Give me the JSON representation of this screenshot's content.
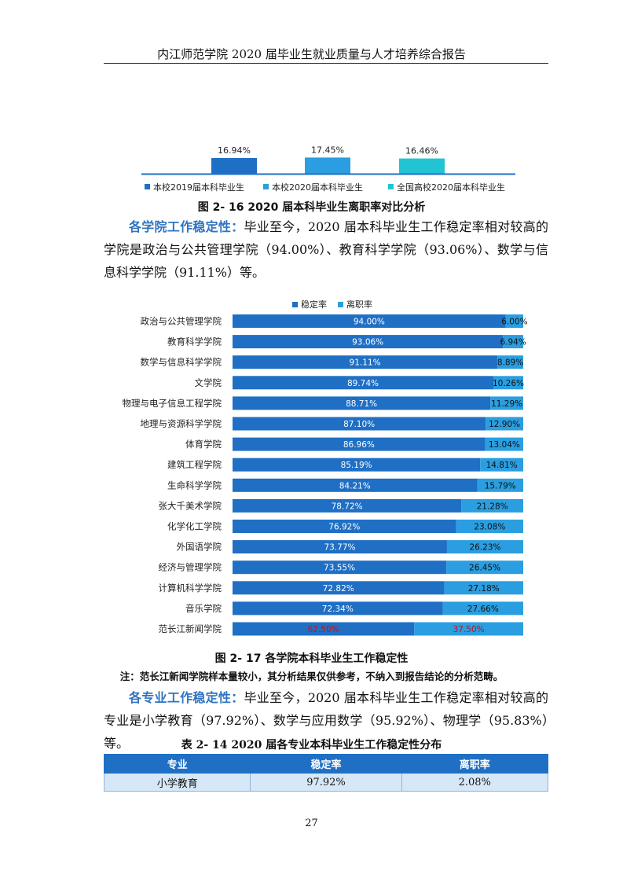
{
  "header": {
    "title": "内江师范学院 2020 届毕业生就业质量与人才培养综合报告"
  },
  "chart1": {
    "caption": "图 2- 16    2020 届本科毕业生离职率对比分析",
    "colors": [
      "#1f6fc5",
      "#2a9ee0",
      "#22c4d4"
    ]
  },
  "section1": {
    "keyword": "各学院工作稳定性：",
    "text": "毕业至今，2020 届本科毕业生工作稳定率相对较高的学院是政治与公共管理学院（94.00%）、教育科学学院（93.06%）、数学与信息科学学院（91.11%）等。"
  },
  "chart2": {
    "caption": "图 2- 17    各学院本科毕业生工作稳定性",
    "colors": {
      "stable": "#1f6fc5",
      "leave": "#2a9ee0",
      "highlight_text": "#c0151b"
    }
  },
  "note": "注：范长江新闻学院样本量较小，其分析结果仅供参考，不纳入到报告结论的分析范畴。",
  "section2": {
    "keyword": "各专业工作稳定性：",
    "text": "毕业至今，2020 届本科毕业生工作稳定率相对较高的专业是小学教育（97.92%）、数学与应用数学（95.92%）、物理学（95.83%）等。"
  },
  "table": {
    "caption": "表 2- 14    2020 届各专业本科毕业生工作稳定性分布",
    "headers": [
      "专业",
      "稳定率",
      "离职率"
    ],
    "rows": [
      [
        "小学教育",
        "97.92%",
        "2.08%"
      ]
    ]
  },
  "page_number": "27",
  "chart_data": [
    {
      "type": "bar",
      "categories": [
        ""
      ],
      "series": [
        {
          "name": "本校2019届本科毕业生",
          "values": [
            16.94
          ]
        },
        {
          "name": "本校2020届本科毕业生",
          "values": [
            17.45
          ]
        },
        {
          "name": "全国高校2020届本科毕业生",
          "values": [
            16.46
          ]
        }
      ],
      "value_labels": [
        "16.94%",
        "17.45%",
        "16.46%"
      ],
      "legend": "bottom"
    },
    {
      "type": "bar",
      "orientation": "horizontal",
      "stacked": true,
      "categories": [
        "政治与公共管理学院",
        "教育科学学院",
        "数学与信息科学学院",
        "文学院",
        "物理与电子信息工程学院",
        "地理与资源科学学院",
        "体育学院",
        "建筑工程学院",
        "生命科学学院",
        "张大千美术学院",
        "化学化工学院",
        "外国语学院",
        "经济与管理学院",
        "计算机科学学院",
        "音乐学院",
        "范长江新闻学院"
      ],
      "series": [
        {
          "name": "稳定率",
          "values": [
            94.0,
            93.06,
            91.11,
            89.74,
            88.71,
            87.1,
            86.96,
            85.19,
            84.21,
            78.72,
            76.92,
            73.77,
            73.55,
            72.82,
            72.34,
            62.5
          ]
        },
        {
          "name": "离职率",
          "values": [
            6.0,
            6.94,
            8.89,
            10.26,
            11.29,
            12.9,
            13.04,
            14.81,
            15.79,
            21.28,
            23.08,
            26.23,
            26.45,
            27.18,
            27.66,
            37.5
          ]
        }
      ],
      "highlight_category": "范长江新闻学院",
      "legend": "top",
      "xlim": [
        0,
        100
      ]
    }
  ]
}
